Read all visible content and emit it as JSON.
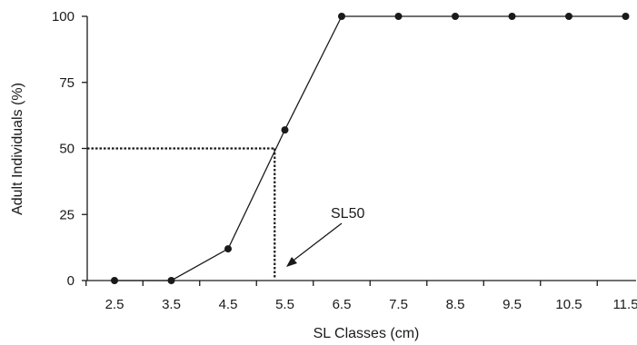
{
  "chart_data": {
    "type": "line",
    "xlabel": "SL Classes (cm)",
    "ylabel": "Adult Individuals (%)",
    "categories": [
      "2.5",
      "3.5",
      "4.5",
      "5.5",
      "6.5",
      "7.5",
      "8.5",
      "9.5",
      "10.5",
      "11.5"
    ],
    "x": [
      2.5,
      3.5,
      4.5,
      5.5,
      6.5,
      7.5,
      8.5,
      9.5,
      10.5,
      11.5
    ],
    "values": [
      0,
      0,
      12,
      57,
      100,
      100,
      100,
      100,
      100,
      100
    ],
    "ylim": [
      0,
      100
    ],
    "yticks": [
      "0",
      "25",
      "50",
      "75",
      "100"
    ],
    "grid": false,
    "color": "#1a1a1a",
    "annotations": [
      {
        "label": "SL50",
        "x": 5.32,
        "y": 50
      }
    ]
  }
}
